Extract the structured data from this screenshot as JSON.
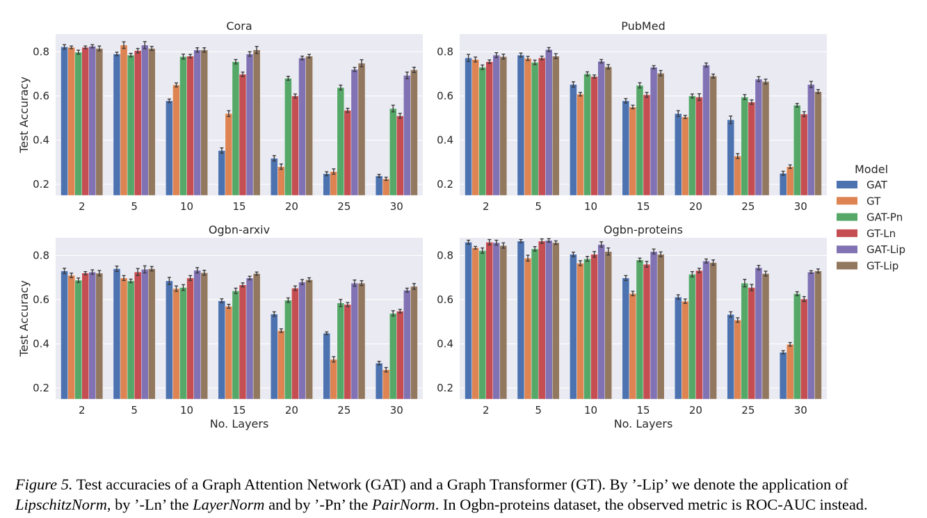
{
  "colors": {
    "GAT": "#4c72b0",
    "GT": "#dd8452",
    "GAT-Pn": "#55a868",
    "GT-Ln": "#c44e52",
    "GAT-Lip": "#8172b3",
    "GT-Lip": "#937860",
    "panel_bg": "#eaeaf2",
    "grid": "#ffffff",
    "errorbar": "#3b3b3b"
  },
  "legend": {
    "title": "Model",
    "entries": [
      "GAT",
      "GT",
      "GAT-Pn",
      "GT-Ln",
      "GAT-Lip",
      "GT-Lip"
    ],
    "placement": "right"
  },
  "caption": {
    "fig_label": "Figure 5.",
    "part1": " Test accuracies of a Graph Attention Network (GAT) and a Graph Transformer (GT). By ’-Lip’ we denote the application of",
    "lip_name": "LipschitzNorm",
    "part2": ", by ’-Ln’ the ",
    "ln_name": "LayerNorm",
    "part3": " and by ’-Pn’ the ",
    "pn_name": "PairNorm",
    "part4": ". In Ogbn-proteins dataset, the observed metric is ROC-AUC instead."
  },
  "chart_data": [
    {
      "type": "bar",
      "title": "Cora",
      "xlabel": "",
      "ylabel": "Test Accuracy",
      "ylim": [
        0.15,
        0.88
      ],
      "yticks": [
        "0.2",
        "0.4",
        "0.6",
        "0.8"
      ],
      "grid": true,
      "categories": [
        "2",
        "5",
        "10",
        "15",
        "20",
        "25",
        "30"
      ],
      "series": [
        {
          "name": "GAT",
          "values": [
            0.822,
            0.79,
            0.578,
            0.353,
            0.318,
            0.248,
            0.238
          ],
          "err": [
            0.01,
            0.008,
            0.008,
            0.012,
            0.012,
            0.009,
            0.007
          ]
        },
        {
          "name": "GT",
          "values": [
            0.82,
            0.83,
            0.65,
            0.52,
            0.28,
            0.258,
            0.225
          ],
          "err": [
            0.006,
            0.015,
            0.009,
            0.013,
            0.012,
            0.012,
            0.007
          ]
        },
        {
          "name": "GAT-Pn",
          "values": [
            0.798,
            0.785,
            0.778,
            0.755,
            0.68,
            0.638,
            0.543
          ],
          "err": [
            0.009,
            0.008,
            0.011,
            0.01,
            0.009,
            0.011,
            0.015
          ]
        },
        {
          "name": "GT-Ln",
          "values": [
            0.82,
            0.805,
            0.78,
            0.698,
            0.6,
            0.535,
            0.51
          ],
          "err": [
            0.006,
            0.01,
            0.008,
            0.01,
            0.009,
            0.009,
            0.011
          ]
        },
        {
          "name": "GAT-Lip",
          "values": [
            0.825,
            0.83,
            0.808,
            0.79,
            0.772,
            0.72,
            0.693
          ],
          "err": [
            0.007,
            0.016,
            0.01,
            0.01,
            0.008,
            0.009,
            0.015
          ]
        },
        {
          "name": "GT-Lip",
          "values": [
            0.815,
            0.815,
            0.808,
            0.808,
            0.78,
            0.748,
            0.718
          ],
          "err": [
            0.011,
            0.009,
            0.01,
            0.016,
            0.008,
            0.016,
            0.012
          ]
        }
      ]
    },
    {
      "type": "bar",
      "title": "PubMed",
      "xlabel": "",
      "ylabel": "",
      "ylim": [
        0.15,
        0.88
      ],
      "yticks": [
        "0.2",
        "0.4",
        "0.6",
        "0.8"
      ],
      "grid": true,
      "categories": [
        "2",
        "5",
        "10",
        "15",
        "20",
        "25",
        "30"
      ],
      "series": [
        {
          "name": "GAT",
          "values": [
            0.772,
            0.785,
            0.652,
            0.578,
            0.52,
            0.492,
            0.25
          ],
          "err": [
            0.016,
            0.009,
            0.012,
            0.01,
            0.013,
            0.017,
            0.009
          ]
        },
        {
          "name": "GT",
          "values": [
            0.765,
            0.77,
            0.608,
            0.55,
            0.505,
            0.328,
            0.28
          ],
          "err": [
            0.011,
            0.009,
            0.008,
            0.008,
            0.007,
            0.011,
            0.008
          ]
        },
        {
          "name": "GAT-Pn",
          "values": [
            0.73,
            0.752,
            0.7,
            0.648,
            0.6,
            0.595,
            0.558
          ],
          "err": [
            0.01,
            0.01,
            0.009,
            0.012,
            0.009,
            0.011,
            0.008
          ]
        },
        {
          "name": "GT-Ln",
          "values": [
            0.755,
            0.772,
            0.688,
            0.605,
            0.595,
            0.572,
            0.518
          ],
          "err": [
            0.008,
            0.008,
            0.007,
            0.011,
            0.015,
            0.01,
            0.011
          ]
        },
        {
          "name": "GAT-Lip",
          "values": [
            0.785,
            0.81,
            0.757,
            0.73,
            0.74,
            0.676,
            0.652
          ],
          "err": [
            0.011,
            0.009,
            0.008,
            0.007,
            0.009,
            0.011,
            0.014
          ]
        },
        {
          "name": "GT-Lip",
          "values": [
            0.778,
            0.78,
            0.732,
            0.703,
            0.69,
            0.665,
            0.62
          ],
          "err": [
            0.011,
            0.011,
            0.01,
            0.012,
            0.009,
            0.011,
            0.009
          ]
        }
      ]
    },
    {
      "type": "bar",
      "title": "Ogbn-arxiv",
      "xlabel": "No. Layers",
      "ylabel": "Test Accuracy",
      "ylim": [
        0.15,
        0.88
      ],
      "yticks": [
        "0.2",
        "0.4",
        "0.6",
        "0.8"
      ],
      "grid": true,
      "categories": [
        "2",
        "5",
        "10",
        "15",
        "20",
        "25",
        "30"
      ],
      "series": [
        {
          "name": "GAT",
          "values": [
            0.73,
            0.74,
            0.685,
            0.595,
            0.535,
            0.448,
            0.313
          ],
          "err": [
            0.012,
            0.012,
            0.016,
            0.009,
            0.01,
            0.006,
            0.008
          ]
        },
        {
          "name": "GT",
          "values": [
            0.71,
            0.698,
            0.65,
            0.57,
            0.46,
            0.33,
            0.283
          ],
          "err": [
            0.01,
            0.011,
            0.012,
            0.009,
            0.008,
            0.012,
            0.01
          ]
        },
        {
          "name": "GAT-Pn",
          "values": [
            0.688,
            0.685,
            0.655,
            0.64,
            0.598,
            0.585,
            0.538
          ],
          "err": [
            0.01,
            0.008,
            0.013,
            0.012,
            0.01,
            0.016,
            0.012
          ]
        },
        {
          "name": "GT-Ln",
          "values": [
            0.72,
            0.725,
            0.698,
            0.667,
            0.652,
            0.578,
            0.548
          ],
          "err": [
            0.007,
            0.016,
            0.011,
            0.009,
            0.01,
            0.009,
            0.008
          ]
        },
        {
          "name": "GAT-Lip",
          "values": [
            0.725,
            0.737,
            0.733,
            0.698,
            0.68,
            0.675,
            0.643
          ],
          "err": [
            0.01,
            0.016,
            0.012,
            0.008,
            0.011,
            0.014,
            0.009
          ]
        },
        {
          "name": "GT-Lip",
          "values": [
            0.72,
            0.74,
            0.722,
            0.718,
            0.69,
            0.675,
            0.66
          ],
          "err": [
            0.012,
            0.01,
            0.011,
            0.007,
            0.009,
            0.011,
            0.013
          ]
        }
      ]
    },
    {
      "type": "bar",
      "title": "Ogbn-proteins",
      "xlabel": "No. Layers",
      "ylabel": "",
      "ylim": [
        0.15,
        0.88
      ],
      "yticks": [
        "0.2",
        "0.4",
        "0.6",
        "0.8"
      ],
      "grid": true,
      "categories": [
        "2",
        "5",
        "10",
        "15",
        "20",
        "25",
        "30"
      ],
      "series": [
        {
          "name": "GAT",
          "values": [
            0.86,
            0.865,
            0.805,
            0.698,
            0.612,
            0.533,
            0.362
          ],
          "err": [
            0.009,
            0.007,
            0.01,
            0.011,
            0.01,
            0.012,
            0.007
          ]
        },
        {
          "name": "GT",
          "values": [
            0.835,
            0.788,
            0.765,
            0.628,
            0.593,
            0.508,
            0.398
          ],
          "err": [
            0.006,
            0.013,
            0.011,
            0.01,
            0.01,
            0.01,
            0.008
          ]
        },
        {
          "name": "GAT-Pn",
          "values": [
            0.822,
            0.83,
            0.785,
            0.78,
            0.715,
            0.675,
            0.627
          ],
          "err": [
            0.012,
            0.01,
            0.011,
            0.008,
            0.012,
            0.017,
            0.009
          ]
        },
        {
          "name": "GT-Ln",
          "values": [
            0.86,
            0.865,
            0.805,
            0.76,
            0.732,
            0.655,
            0.603
          ],
          "err": [
            0.012,
            0.01,
            0.013,
            0.013,
            0.01,
            0.014,
            0.011
          ]
        },
        {
          "name": "GAT-Lip",
          "values": [
            0.858,
            0.868,
            0.85,
            0.818,
            0.775,
            0.745,
            0.725
          ],
          "err": [
            0.011,
            0.008,
            0.012,
            0.011,
            0.009,
            0.01,
            0.006
          ]
        },
        {
          "name": "GT-Lip",
          "values": [
            0.845,
            0.858,
            0.818,
            0.805,
            0.768,
            0.718,
            0.73
          ],
          "err": [
            0.012,
            0.008,
            0.016,
            0.011,
            0.012,
            0.011,
            0.009
          ]
        }
      ]
    }
  ]
}
